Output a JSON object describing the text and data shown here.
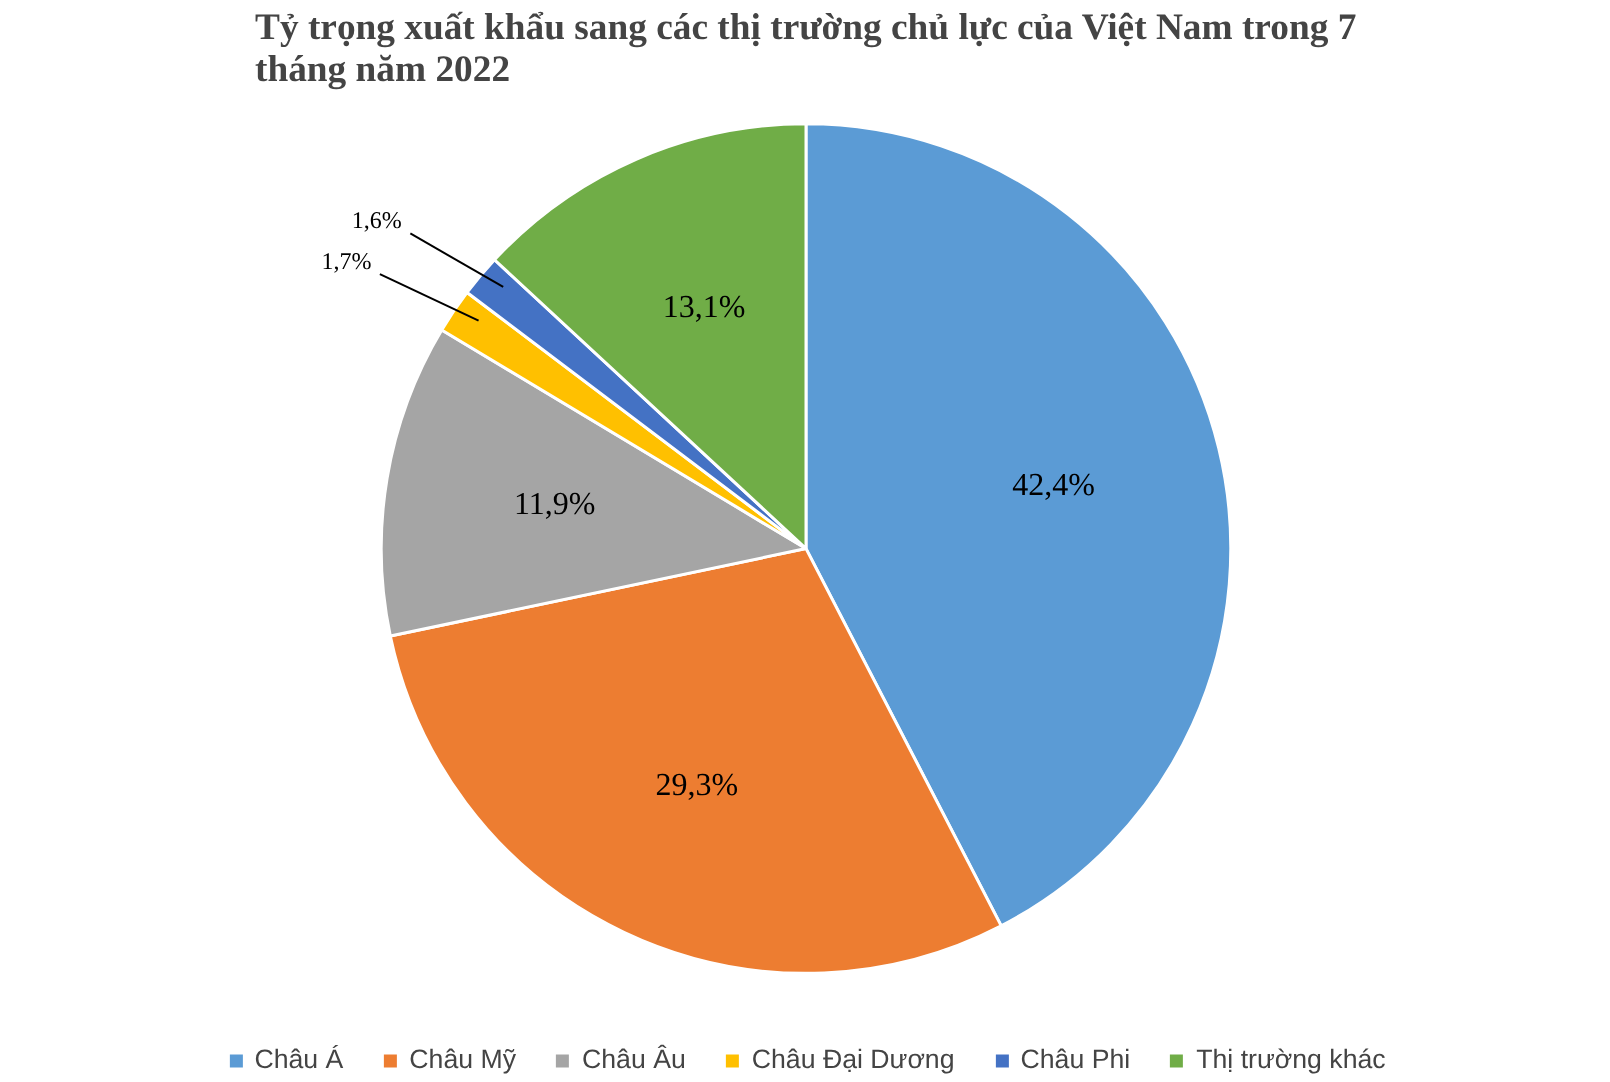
{
  "chart_data": {
    "type": "pie",
    "title": "Tỷ trọng xuất khẩu sang các thị trường chủ lực của Việt Nam trong 7 tháng năm 2022",
    "categories": [
      "Châu Á",
      "Châu Mỹ",
      "Châu Âu",
      "Châu Đại Dương",
      "Châu Phi",
      "Thị trường khác"
    ],
    "values": [
      42.4,
      29.3,
      11.9,
      1.7,
      1.6,
      13.1
    ],
    "value_labels": [
      "42,4%",
      "29,3%",
      "11,9%",
      "1,7%",
      "1,6%",
      "13,1%"
    ],
    "colors": [
      "#5b9bd5",
      "#ed7d31",
      "#a5a5a5",
      "#ffc000",
      "#4472c4",
      "#70ad47"
    ],
    "legend": "bottom"
  }
}
